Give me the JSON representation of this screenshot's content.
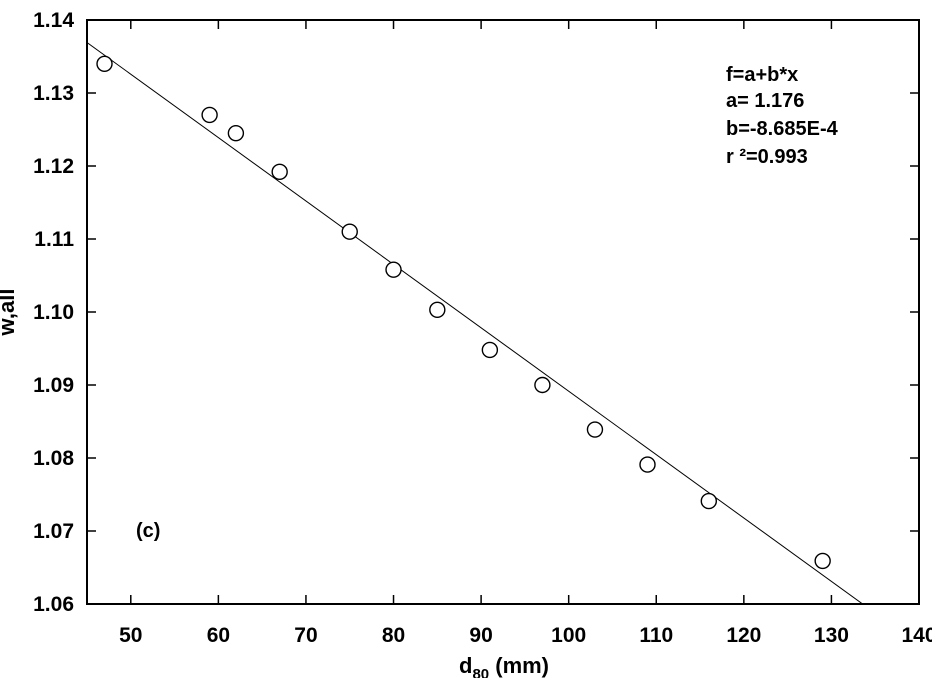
{
  "chart_data": {
    "type": "scatter",
    "title": "",
    "xlabel": "d",
    "xlabel_sub": "80",
    "xlabel_unit": " (mm)",
    "ylabel": "w,all",
    "xlim": [
      45,
      140
    ],
    "ylim": [
      1.06,
      1.14
    ],
    "x_ticks": [
      50,
      60,
      70,
      80,
      90,
      100,
      110,
      120,
      130,
      140
    ],
    "x_tick_labels": [
      "50",
      "60",
      "70",
      "80",
      "90",
      "100",
      "110",
      "120",
      "130",
      "140"
    ],
    "y_ticks": [
      1.06,
      1.07,
      1.08,
      1.09,
      1.1,
      1.11,
      1.12,
      1.13,
      1.14
    ],
    "y_tick_labels": [
      "1.06",
      "1.07",
      "1.08",
      "1.09",
      "1.10",
      "1.11",
      "1.12",
      "1.13",
      "1.14"
    ],
    "points": [
      {
        "x": 47,
        "y": 1.134
      },
      {
        "x": 59,
        "y": 1.127
      },
      {
        "x": 62,
        "y": 1.1245
      },
      {
        "x": 67,
        "y": 1.1192
      },
      {
        "x": 75,
        "y": 1.111
      },
      {
        "x": 80,
        "y": 1.1058
      },
      {
        "x": 85,
        "y": 1.1003
      },
      {
        "x": 91,
        "y": 1.0948
      },
      {
        "x": 97,
        "y": 1.09
      },
      {
        "x": 103,
        "y": 1.0839
      },
      {
        "x": 109,
        "y": 1.0791
      },
      {
        "x": 116,
        "y": 1.0741
      },
      {
        "x": 129,
        "y": 1.0659
      }
    ],
    "fit": {
      "a": 1.176,
      "b": -0.0008685
    },
    "annotations": {
      "equation": "f=a+b*x",
      "a_text": "a= 1.176",
      "b_text": "b=-8.685E-4",
      "r2_text": "r ²=0.993",
      "panel_label": "(c)"
    },
    "grid": false,
    "marker": "open-circle"
  }
}
